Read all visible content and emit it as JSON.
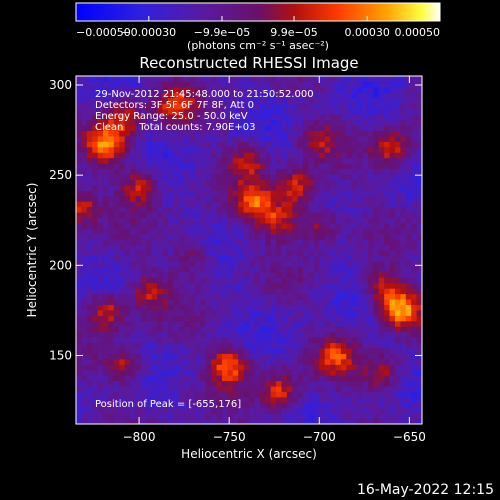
{
  "chart_data": {
    "type": "heatmap",
    "title": "Reconstructed RHESSI Image",
    "xlabel": "Heliocentric X (arcsec)",
    "ylabel": "Heliocentric Y (arcsec)",
    "xlim": [
      -835,
      -643
    ],
    "ylim": [
      112,
      305
    ],
    "x_ticks": [
      -800,
      -750,
      -700,
      -650
    ],
    "y_ticks": [
      150,
      200,
      250,
      300
    ],
    "colorbar": {
      "range": [
        -0.0005,
        0.0005
      ],
      "tick_values": [
        -0.0005,
        -0.0003,
        -9.9e-05,
        9.9e-05,
        0.0003,
        0.0005
      ],
      "tick_labels": [
        "-0.00050",
        "-0.00030",
        "-9.9e-05",
        "9.9e-05",
        "0.00030",
        "0.00050"
      ],
      "unit": "(photons cm⁻² s⁻¹ asec⁻²)"
    },
    "annotations": [
      "29-Nov-2012 21:45:48.000 to 21:50:52.000",
      "Detectors: 3F 5F 6F 7F 8F, Att 0",
      "Energy Range: 25.0 - 50.0 keV",
      "Clean     Total counts: 7.90E+03"
    ],
    "peak_label": "Position of Peak = [-655,176]",
    "bright_sources": [
      {
        "x": -818,
        "y": 268,
        "v": 0.00042
      },
      {
        "x": -808,
        "y": 283,
        "v": 0.0003
      },
      {
        "x": -780,
        "y": 290,
        "v": 0.0003
      },
      {
        "x": -833,
        "y": 232,
        "v": 0.00035
      },
      {
        "x": -800,
        "y": 244,
        "v": 0.0003
      },
      {
        "x": -740,
        "y": 258,
        "v": 0.00026
      },
      {
        "x": -735,
        "y": 235,
        "v": 0.00035
      },
      {
        "x": -712,
        "y": 243,
        "v": 0.00035
      },
      {
        "x": -722,
        "y": 225,
        "v": 0.0003
      },
      {
        "x": -700,
        "y": 223,
        "v": 0.00026
      },
      {
        "x": -700,
        "y": 270,
        "v": 0.00022
      },
      {
        "x": -660,
        "y": 265,
        "v": 0.00033
      },
      {
        "x": -655,
        "y": 176,
        "v": 0.0005
      },
      {
        "x": -665,
        "y": 188,
        "v": 0.0003
      },
      {
        "x": -818,
        "y": 175,
        "v": 0.00035
      },
      {
        "x": -795,
        "y": 185,
        "v": 0.00025
      },
      {
        "x": -750,
        "y": 145,
        "v": 0.0004
      },
      {
        "x": -722,
        "y": 130,
        "v": 0.00033
      },
      {
        "x": -690,
        "y": 150,
        "v": 0.0003
      },
      {
        "x": -665,
        "y": 140,
        "v": 0.00028
      },
      {
        "x": -808,
        "y": 145,
        "v": 0.00028
      },
      {
        "x": -770,
        "y": 205,
        "v": 0.00022
      }
    ]
  },
  "footer": {
    "timestamp": "16-May-2022 12:15"
  },
  "colors": {
    "background": "#000000",
    "colormap": [
      "#0000ff",
      "#3c1ecf",
      "#5a2a9e",
      "#7a1a7a",
      "#b01010",
      "#ff4000",
      "#ffa000",
      "#ffff40",
      "#ffffff"
    ]
  }
}
